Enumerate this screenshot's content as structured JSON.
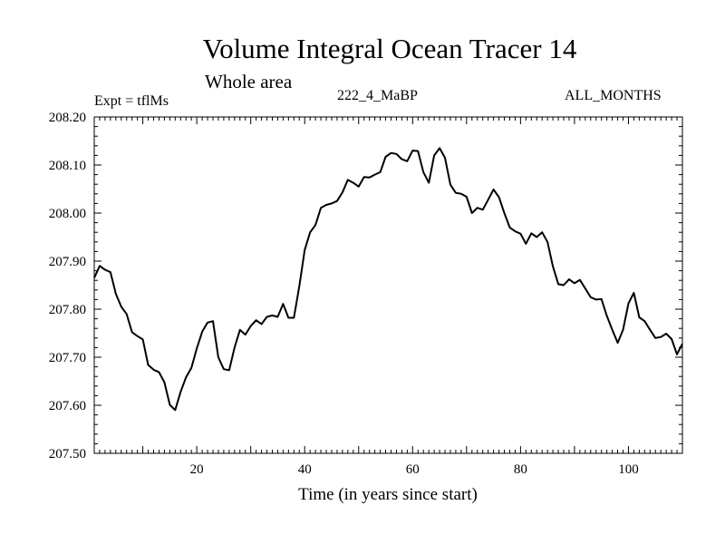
{
  "chart_data": {
    "type": "line",
    "title": "Volume Integral Ocean Tracer 14",
    "subtitle": "Whole area",
    "left_label": "Expt = tflMs",
    "center_label": "222_4_MaBP",
    "right_label": "ALL_MONTHS",
    "xlabel": "Time (in years since start)",
    "ylabel": "",
    "xlim": [
      1,
      110
    ],
    "ylim": [
      207.5,
      208.2
    ],
    "xticks": [
      20,
      40,
      60,
      80,
      100
    ],
    "yticks": [
      "207.50",
      "207.60",
      "207.70",
      "207.80",
      "207.90",
      "208.00",
      "208.10",
      "208.20"
    ],
    "grid": false,
    "series": [
      {
        "x": [
          1,
          2,
          3,
          4,
          5,
          6,
          7,
          8,
          9,
          10,
          11,
          12,
          13,
          14,
          15,
          16,
          17,
          18,
          19,
          20,
          21,
          22,
          23,
          24,
          25,
          26,
          27,
          28,
          29,
          30,
          31,
          32,
          33,
          34,
          35,
          36,
          37,
          38,
          39,
          40,
          41,
          42,
          43,
          44,
          45,
          46,
          47,
          48,
          49,
          50,
          51,
          52,
          53,
          54,
          55,
          56,
          57,
          58,
          59,
          60,
          61,
          62,
          63,
          64,
          65,
          66,
          67,
          68,
          69,
          70,
          71,
          72,
          73,
          74,
          75,
          76,
          77,
          78,
          79,
          80,
          81,
          82,
          83,
          84,
          85,
          86,
          87,
          88,
          89,
          90,
          91,
          92,
          93,
          94,
          95,
          96,
          97,
          98,
          99,
          100,
          101,
          102,
          103,
          104,
          105,
          106,
          107,
          108,
          109,
          110
        ],
        "values": [
          207.865,
          207.89,
          207.882,
          207.877,
          207.832,
          207.805,
          207.79,
          207.752,
          207.744,
          207.737,
          207.684,
          207.674,
          207.669,
          207.648,
          207.601,
          207.59,
          207.628,
          207.658,
          207.678,
          207.718,
          207.753,
          207.772,
          207.775,
          207.7,
          207.675,
          207.673,
          207.72,
          207.757,
          207.747,
          207.765,
          207.777,
          207.769,
          207.784,
          207.787,
          207.784,
          207.811,
          207.782,
          207.782,
          207.848,
          207.923,
          207.96,
          207.975,
          208.011,
          208.017,
          208.02,
          208.025,
          208.043,
          208.069,
          208.063,
          208.055,
          208.075,
          208.074,
          208.08,
          208.085,
          208.117,
          208.125,
          208.123,
          208.112,
          208.108,
          208.13,
          208.129,
          208.085,
          208.063,
          208.12,
          208.135,
          208.115,
          208.059,
          208.042,
          208.04,
          208.034,
          208.0,
          208.011,
          208.007,
          208.028,
          208.049,
          208.033,
          208.0,
          207.97,
          207.962,
          207.957,
          207.936,
          207.958,
          207.95,
          207.96,
          207.94,
          207.889,
          207.852,
          207.85,
          207.862,
          207.854,
          207.861,
          207.843,
          207.825,
          207.82,
          207.821,
          207.786,
          207.757,
          207.73,
          207.757,
          207.812,
          207.834,
          207.783,
          207.775,
          207.757,
          207.74,
          207.742,
          207.749,
          207.738,
          207.706,
          207.728
        ]
      }
    ]
  }
}
